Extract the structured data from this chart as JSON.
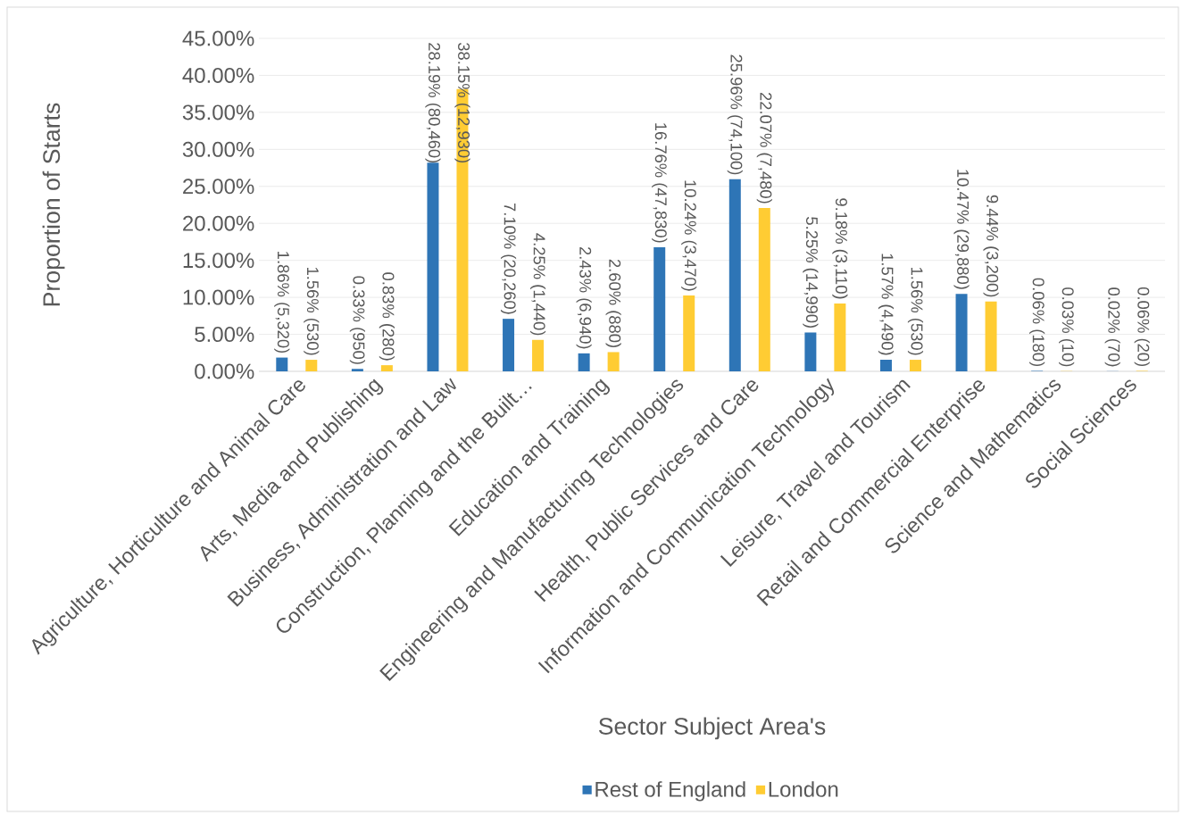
{
  "chart_data": {
    "type": "bar",
    "xlabel": "Sector Subject Area's",
    "ylabel": "Proportion of Starts",
    "categories": [
      "Agriculture, Horticulture and Animal Care",
      "Arts, Media and Publishing",
      "Business, Administration and Law",
      "Construction, Planning and the Built…",
      "Education and Training",
      "Engineering and Manufacturing Technologies",
      "Health, Public Services and Care",
      "Information and Communication Technology",
      "Leisure, Travel and Tourism",
      "Retail and Commercial Enterprise",
      "Science and Mathematics",
      "Social Sciences"
    ],
    "series": [
      {
        "name": "Rest of England",
        "color": "#2e75b6",
        "values": [
          1.86,
          0.33,
          28.19,
          7.1,
          2.43,
          16.76,
          25.96,
          5.25,
          1.57,
          10.47,
          0.06,
          0.02
        ],
        "value_labels": [
          "1.86% (5,320)",
          "0.33% (950)",
          "28.19% (80,460)",
          "7.10% (20,260)",
          "2.43% (6,940)",
          "16.76% (47,830)",
          "25.96% (74,100)",
          "5.25% (14,990)",
          "1.57% (4,490)",
          "10.47% (29,880)",
          "0.06% (180)",
          "0.02% (70)"
        ]
      },
      {
        "name": "London",
        "color": "#ffcc33",
        "values": [
          1.56,
          0.83,
          38.15,
          4.25,
          2.6,
          10.24,
          22.07,
          9.18,
          1.56,
          9.44,
          0.03,
          0.06
        ],
        "value_labels": [
          "1.56% (530)",
          "0.83% (280)",
          "38.15% (12,930)",
          "4.25% (1,440)",
          "2.60% (880)",
          "10.24% (3,470)",
          "22.07% (7,480)",
          "9.18% (3,110)",
          "1.56% (530)",
          "9.44% (3,200)",
          "0.03% (10)",
          "0.06% (20)"
        ]
      }
    ],
    "ylim": [
      0,
      45
    ],
    "yticks": [
      {
        "value": 0,
        "label": "0.00%"
      },
      {
        "value": 5,
        "label": "5.00%"
      },
      {
        "value": 10,
        "label": "10.00%"
      },
      {
        "value": 15,
        "label": "15.00%"
      },
      {
        "value": 20,
        "label": "20.00%"
      },
      {
        "value": 25,
        "label": "25.00%"
      },
      {
        "value": 30,
        "label": "30.00%"
      },
      {
        "value": 35,
        "label": "35.00%"
      },
      {
        "value": 40,
        "label": "40.00%"
      },
      {
        "value": 45,
        "label": "45.00%"
      }
    ],
    "grid": "y",
    "legend": "bottom"
  }
}
